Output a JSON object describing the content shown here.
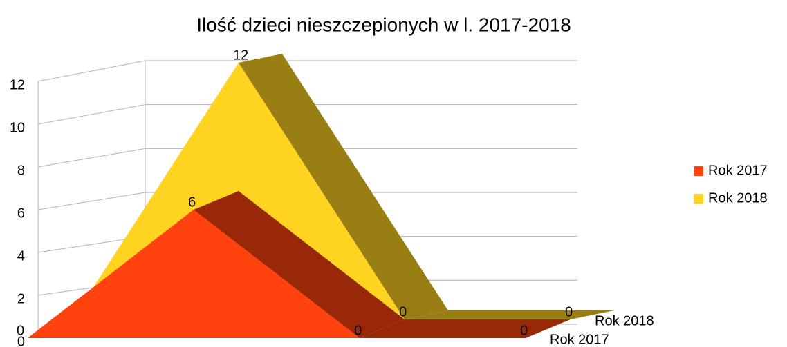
{
  "chart_data": {
    "type": "area3d",
    "title": "Ilość dzieci nieszczepionych w l. 2017-2018",
    "categories": [
      null,
      null,
      null,
      null
    ],
    "series": [
      {
        "name": "Rok 2017",
        "color": "#ff420e",
        "values": [
          0,
          6,
          0,
          0
        ]
      },
      {
        "name": "Rok 2018",
        "color": "#ffd320",
        "values": [
          0,
          12,
          0,
          0
        ]
      }
    ],
    "ylim": [
      0,
      12
    ],
    "yticks": [
      0,
      2,
      4,
      6,
      8,
      10,
      12
    ],
    "grid": true,
    "legend": "right"
  }
}
